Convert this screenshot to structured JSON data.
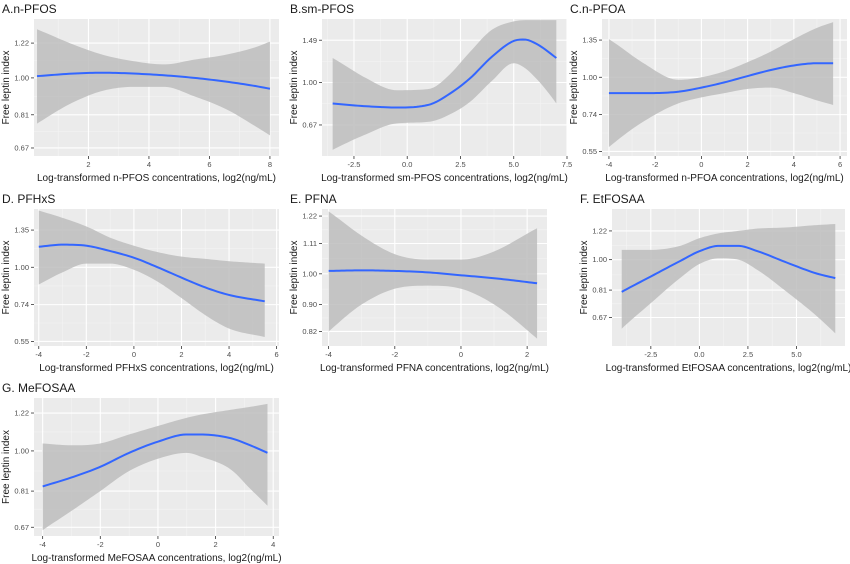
{
  "chart_data": [
    {
      "type": "line",
      "title": "A.n-PFOS",
      "xlabel": "Log-transformed n-PFOS concentrations, log2(ng/mL)",
      "ylabel": "Free leptin index",
      "xlim": [
        0.2,
        8.3
      ],
      "ylim": [
        0.64,
        1.4
      ],
      "log_y": true,
      "grid": true,
      "x_ticks": [
        2,
        4,
        6,
        8
      ],
      "y_ticks": [
        0.67,
        0.81,
        1.0,
        1.22
      ],
      "x_tick_labels": [
        "2",
        "4",
        "6",
        "8"
      ],
      "y_tick_labels": [
        "0.67",
        "0.81",
        "1.00",
        "1.22"
      ],
      "series": [
        {
          "x": [
            0.3,
            1.5,
            2.5,
            3.5,
            4.5,
            5.5,
            6.5,
            7.5,
            8.0
          ],
          "y": [
            1.01,
            1.025,
            1.03,
            1.025,
            1.015,
            1.0,
            0.98,
            0.955,
            0.94
          ],
          "ci_low": [
            0.77,
            0.87,
            0.93,
            0.95,
            0.95,
            0.9,
            0.84,
            0.76,
            0.72
          ],
          "ci_high": [
            1.32,
            1.21,
            1.14,
            1.1,
            1.08,
            1.11,
            1.14,
            1.19,
            1.23
          ]
        }
      ]
    },
    {
      "type": "line",
      "title": "B.sm-PFOS",
      "xlabel": "Log-transformed sm-PFOS concentrations, log2(ng/mL)",
      "ylabel": "Free leptin index",
      "xlim": [
        -4.0,
        7.5
      ],
      "ylim": [
        0.5,
        1.82
      ],
      "log_y": true,
      "grid": true,
      "x_ticks": [
        -2.5,
        0.0,
        2.5,
        5.0,
        7.5
      ],
      "y_ticks": [
        0.67,
        1.0,
        1.49
      ],
      "x_tick_labels": [
        "-2.5",
        "0.0",
        "2.5",
        "5.0",
        "7.5"
      ],
      "y_tick_labels": [
        "0.67",
        "1.00",
        "1.49"
      ],
      "series": [
        {
          "x": [
            -3.5,
            -2.0,
            -0.5,
            1.0,
            2.0,
            3.0,
            4.0,
            5.0,
            5.5,
            6.0,
            7.0
          ],
          "y": [
            0.82,
            0.8,
            0.79,
            0.81,
            0.9,
            1.05,
            1.28,
            1.48,
            1.5,
            1.45,
            1.26
          ],
          "ci_low": [
            0.53,
            0.61,
            0.68,
            0.69,
            0.74,
            0.84,
            1.02,
            1.2,
            1.15,
            1.05,
            0.82
          ],
          "ci_high": [
            1.26,
            1.05,
            0.93,
            0.94,
            1.08,
            1.35,
            1.65,
            1.78,
            1.8,
            1.8,
            1.8
          ]
        }
      ]
    },
    {
      "type": "line",
      "title": "C.n-PFOA",
      "xlabel": "Log-transformed n-PFOA concentrations, log2(ng/mL)",
      "ylabel": "Free leptin index",
      "xlim": [
        -4.3,
        6.3
      ],
      "ylim": [
        0.53,
        1.6
      ],
      "log_y": true,
      "grid": true,
      "x_ticks": [
        -4,
        -2,
        0,
        2,
        4,
        6
      ],
      "y_ticks": [
        0.55,
        0.74,
        1.0,
        1.35
      ],
      "x_tick_labels": [
        "-4",
        "-2",
        "0",
        "2",
        "4",
        "6"
      ],
      "y_tick_labels": [
        "0.55",
        "0.74",
        "1.00",
        "1.35"
      ],
      "series": [
        {
          "x": [
            -4.0,
            -2.5,
            -1.0,
            0.0,
            1.0,
            2.0,
            3.0,
            4.0,
            5.0,
            5.7
          ],
          "y": [
            0.88,
            0.88,
            0.89,
            0.92,
            0.96,
            1.01,
            1.06,
            1.1,
            1.12,
            1.12
          ],
          "ci_low": [
            0.57,
            0.7,
            0.81,
            0.85,
            0.88,
            0.91,
            0.92,
            0.88,
            0.83,
            0.8
          ],
          "ci_high": [
            1.36,
            1.12,
            0.98,
            1.0,
            1.05,
            1.13,
            1.23,
            1.36,
            1.49,
            1.56
          ]
        }
      ]
    },
    {
      "type": "line",
      "title": "D. PFHxS",
      "xlabel": "Log-transformed PFHxS concentrations, log2(ng/mL)",
      "ylabel": "Free leptin index",
      "xlim": [
        -4.2,
        6.1
      ],
      "ylim": [
        0.53,
        1.6
      ],
      "log_y": true,
      "grid": true,
      "x_ticks": [
        -4,
        -2,
        0,
        2,
        4,
        6
      ],
      "y_ticks": [
        0.55,
        0.74,
        1.0,
        1.35
      ],
      "x_tick_labels": [
        "-4",
        "-2",
        "0",
        "2",
        "4",
        "6"
      ],
      "y_tick_labels": [
        "0.55",
        "0.74",
        "1.00",
        "1.35"
      ],
      "series": [
        {
          "x": [
            -4.0,
            -3.0,
            -2.0,
            -1.0,
            0.0,
            1.0,
            2.0,
            3.0,
            4.0,
            5.5
          ],
          "y": [
            1.18,
            1.2,
            1.19,
            1.14,
            1.08,
            1.0,
            0.92,
            0.85,
            0.8,
            0.76
          ],
          "ci_low": [
            0.87,
            0.96,
            1.03,
            1.03,
            0.98,
            0.89,
            0.78,
            0.68,
            0.61,
            0.57
          ],
          "ci_high": [
            1.58,
            1.49,
            1.39,
            1.27,
            1.19,
            1.13,
            1.09,
            1.07,
            1.05,
            1.03
          ]
        }
      ]
    },
    {
      "type": "line",
      "title": "E. PFNA",
      "xlabel": "Log-transformed PFNA concentrations, log2(ng/mL)",
      "ylabel": "Free leptin index",
      "xlim": [
        -4.2,
        2.6
      ],
      "ylim": [
        0.78,
        1.25
      ],
      "log_y": true,
      "grid": true,
      "x_ticks": [
        -4,
        -2,
        0,
        2
      ],
      "y_ticks": [
        0.82,
        0.9,
        1.0,
        1.11,
        1.22
      ],
      "x_tick_labels": [
        "-4",
        "-2",
        "0",
        "2"
      ],
      "y_tick_labels": [
        "0.82",
        "0.90",
        "1.00",
        "1.11",
        "1.22"
      ],
      "series": [
        {
          "x": [
            -4.0,
            -3.0,
            -2.0,
            -1.0,
            0.0,
            1.0,
            2.3
          ],
          "y": [
            1.01,
            1.012,
            1.01,
            1.005,
            0.995,
            0.985,
            0.968
          ],
          "ci_low": [
            0.82,
            0.9,
            0.95,
            0.96,
            0.95,
            0.9,
            0.8
          ],
          "ci_high": [
            1.24,
            1.14,
            1.07,
            1.05,
            1.05,
            1.08,
            1.17
          ]
        }
      ]
    },
    {
      "type": "line",
      "title": "F. EtFOSAA",
      "xlabel": "Log-transformed EtFOSAA concentrations, log2(ng/mL)",
      "ylabel": "Free leptin index",
      "xlim": [
        -4.5,
        7.5
      ],
      "ylim": [
        0.55,
        1.42
      ],
      "log_y": true,
      "grid": true,
      "x_ticks": [
        -2.5,
        0.0,
        2.5,
        5.0
      ],
      "y_ticks": [
        0.67,
        0.81,
        1.0,
        1.22
      ],
      "x_tick_labels": [
        "-2.5",
        "0.0",
        "2.5",
        "5.0"
      ],
      "y_tick_labels": [
        "0.67",
        "0.81",
        "1.00",
        "1.22"
      ],
      "series": [
        {
          "x": [
            -4.0,
            -2.5,
            -1.0,
            0.0,
            1.0,
            2.0,
            3.0,
            4.5,
            6.0,
            7.0
          ],
          "y": [
            0.8,
            0.89,
            0.99,
            1.06,
            1.1,
            1.1,
            1.06,
            0.98,
            0.91,
            0.88
          ],
          "ci_low": [
            0.62,
            0.74,
            0.88,
            0.97,
            1.01,
            1.0,
            0.93,
            0.8,
            0.68,
            0.6
          ],
          "ci_high": [
            1.07,
            1.07,
            1.1,
            1.16,
            1.2,
            1.22,
            1.24,
            1.25,
            1.27,
            1.28
          ]
        }
      ]
    },
    {
      "type": "line",
      "title": "G. MeFOSAA",
      "xlabel": "Log-transformed MeFOSAA concentrations, log2(ng/mL)",
      "ylabel": "Free leptin index",
      "xlim": [
        -4.3,
        4.2
      ],
      "ylim": [
        0.64,
        1.32
      ],
      "log_y": true,
      "grid": true,
      "x_ticks": [
        -4,
        -2,
        0,
        2,
        4
      ],
      "y_ticks": [
        0.67,
        0.81,
        1.0,
        1.22
      ],
      "x_tick_labels": [
        "-4",
        "-2",
        "0",
        "2",
        "4"
      ],
      "y_tick_labels": [
        "0.67",
        "0.81",
        "1.00",
        "1.22"
      ],
      "series": [
        {
          "x": [
            -4.0,
            -3.0,
            -2.0,
            -1.0,
            0.0,
            1.0,
            1.5,
            2.5,
            3.2,
            3.8
          ],
          "y": [
            0.83,
            0.87,
            0.92,
            0.99,
            1.05,
            1.09,
            1.09,
            1.07,
            1.03,
            0.99
          ],
          "ci_low": [
            0.66,
            0.73,
            0.81,
            0.9,
            0.96,
            0.99,
            0.97,
            0.91,
            0.82,
            0.75
          ],
          "ci_high": [
            1.04,
            1.03,
            1.04,
            1.09,
            1.14,
            1.19,
            1.21,
            1.24,
            1.26,
            1.28
          ]
        }
      ]
    }
  ]
}
